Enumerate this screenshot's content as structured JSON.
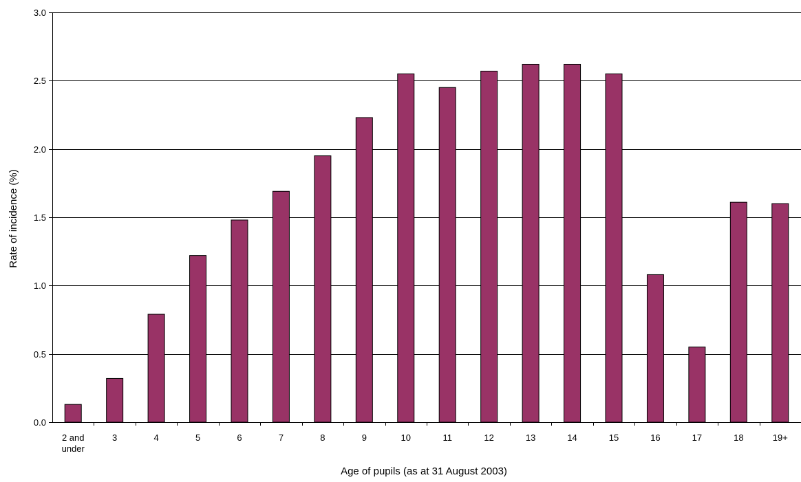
{
  "chart_data": {
    "type": "bar",
    "title": "",
    "xlabel": "Age of pupils (as at 31 August 2003)",
    "ylabel": "Rate of incidence (%)",
    "categories": [
      "2 and under",
      "3",
      "4",
      "5",
      "6",
      "7",
      "8",
      "9",
      "10",
      "11",
      "12",
      "13",
      "14",
      "15",
      "16",
      "17",
      "18",
      "19+"
    ],
    "category_lines": [
      [
        "2 and",
        "under"
      ],
      [
        "3"
      ],
      [
        "4"
      ],
      [
        "5"
      ],
      [
        "6"
      ],
      [
        "7"
      ],
      [
        "8"
      ],
      [
        "9"
      ],
      [
        "10"
      ],
      [
        "11"
      ],
      [
        "12"
      ],
      [
        "13"
      ],
      [
        "14"
      ],
      [
        "15"
      ],
      [
        "16"
      ],
      [
        "17"
      ],
      [
        "18"
      ],
      [
        "19+"
      ]
    ],
    "values": [
      0.13,
      0.32,
      0.79,
      1.22,
      1.48,
      1.69,
      1.95,
      2.23,
      2.55,
      2.45,
      2.57,
      2.62,
      2.62,
      2.55,
      1.08,
      0.55,
      1.61,
      1.6
    ],
    "ylim": [
      0,
      3.0
    ],
    "yticks": [
      "0.0",
      "0.5",
      "1.0",
      "1.5",
      "2.0",
      "2.5",
      "3.0"
    ],
    "grid": true,
    "legend": "none",
    "colors": {
      "bar_fill": "#993366",
      "bar_stroke": "#000000",
      "grid": "#000000",
      "axis": "#000000"
    }
  }
}
